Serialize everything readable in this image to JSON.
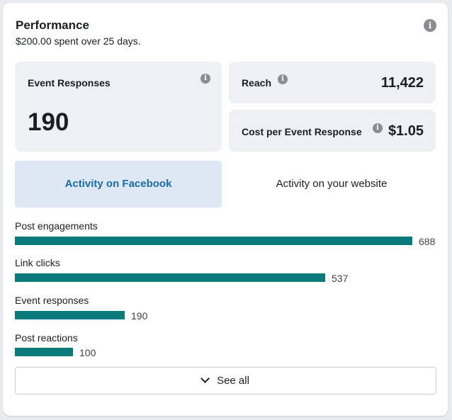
{
  "performance": {
    "title": "Performance",
    "subtitle": "$200.00 spent over 25 days."
  },
  "metrics": {
    "event_responses": {
      "label": "Event Responses",
      "value": "190"
    },
    "reach": {
      "label": "Reach",
      "value": "11,422"
    },
    "cost_per": {
      "label": "Cost per Event Response",
      "value": "$1.05"
    }
  },
  "tabs": [
    {
      "label": "Activity on Facebook",
      "active": true
    },
    {
      "label": "Activity on your website",
      "active": false
    }
  ],
  "activity": [
    {
      "label": "Post engagements",
      "value": 688,
      "value_text": "688"
    },
    {
      "label": "Link clicks",
      "value": 537,
      "value_text": "537"
    },
    {
      "label": "Event responses",
      "value": 190,
      "value_text": "190"
    },
    {
      "label": "Post reactions",
      "value": 100,
      "value_text": "100"
    }
  ],
  "see_all": {
    "label": "See all"
  },
  "colors": {
    "bar": "#0a7a7a",
    "active_tab_bg": "#dde8f4",
    "active_tab_text": "#1a6ba6"
  },
  "icons": [
    "info-icon",
    "chevron-down-icon"
  ]
}
